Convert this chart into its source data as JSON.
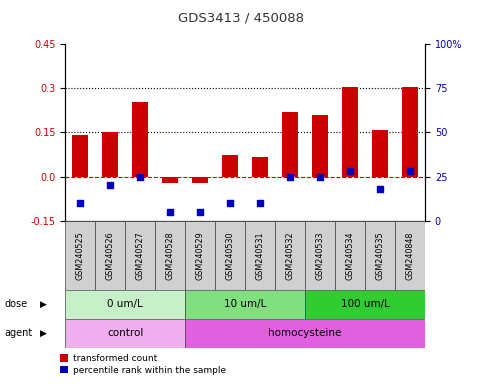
{
  "title": "GDS3413 / 450088",
  "samples": [
    "GSM240525",
    "GSM240526",
    "GSM240527",
    "GSM240528",
    "GSM240529",
    "GSM240530",
    "GSM240531",
    "GSM240532",
    "GSM240533",
    "GSM240534",
    "GSM240535",
    "GSM240848"
  ],
  "red_values": [
    0.143,
    0.152,
    0.253,
    -0.02,
    -0.022,
    0.075,
    0.068,
    0.22,
    0.21,
    0.305,
    0.158,
    0.305
  ],
  "blue_pct": [
    10,
    20,
    25,
    5,
    5,
    10,
    10,
    25,
    25,
    28,
    18,
    28
  ],
  "ylim_left": [
    -0.15,
    0.45
  ],
  "ylim_right": [
    0,
    100
  ],
  "yticks_left": [
    -0.15,
    0.0,
    0.15,
    0.3,
    0.45
  ],
  "yticks_right": [
    0,
    25,
    50,
    75,
    100
  ],
  "dose_groups": [
    {
      "label": "0 um/L",
      "start": 0,
      "end": 4,
      "color": "#c8f0c8"
    },
    {
      "label": "10 um/L",
      "start": 4,
      "end": 8,
      "color": "#80e080"
    },
    {
      "label": "100 um/L",
      "start": 8,
      "end": 12,
      "color": "#30cc30"
    }
  ],
  "agent_groups": [
    {
      "label": "control",
      "start": 0,
      "end": 4,
      "color": "#f0b0f0"
    },
    {
      "label": "homocysteine",
      "start": 4,
      "end": 12,
      "color": "#e060e0"
    }
  ],
  "red_color": "#cc0000",
  "blue_color": "#0000bb",
  "hline_color": "#cc0000",
  "grid_color": "#000000",
  "sample_box_color": "#d0d0d0",
  "legend_red": "transformed count",
  "legend_blue": "percentile rank within the sample"
}
